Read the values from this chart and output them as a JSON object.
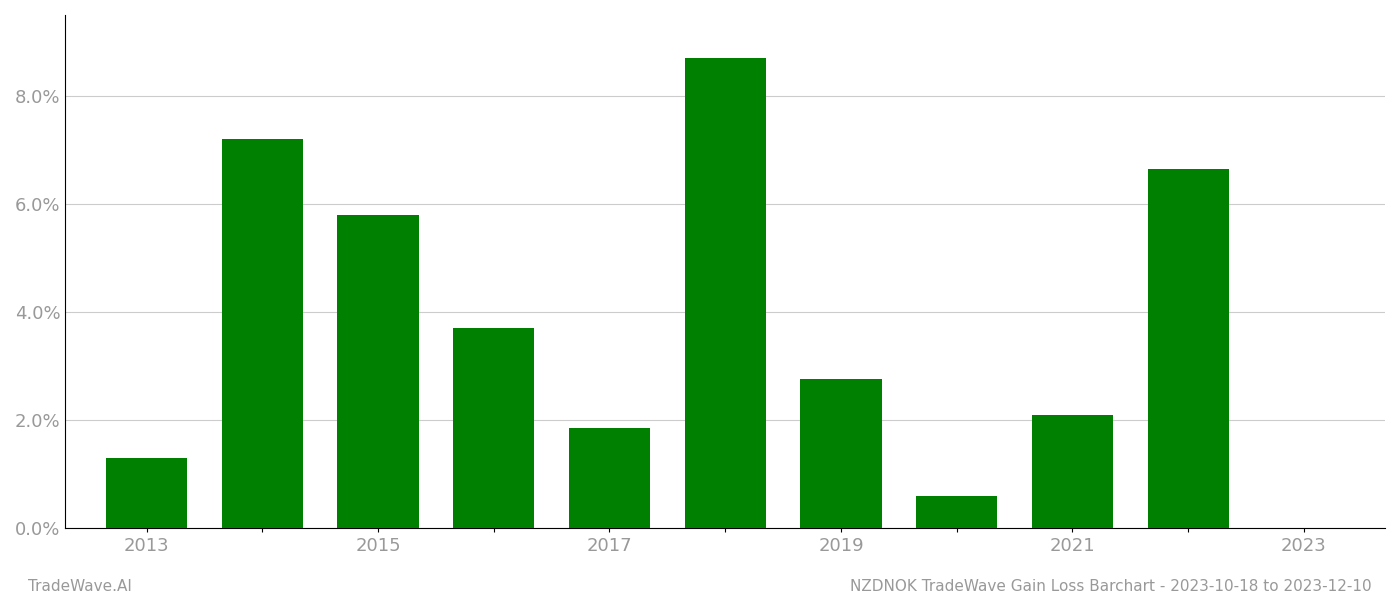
{
  "years": [
    2013,
    2014,
    2015,
    2016,
    2017,
    2018,
    2019,
    2020,
    2021,
    2022
  ],
  "values": [
    0.013,
    0.072,
    0.058,
    0.037,
    0.0185,
    0.087,
    0.0275,
    0.006,
    0.021,
    0.0665
  ],
  "bar_color": "#008000",
  "xtick_label_years": [
    2013,
    2015,
    2017,
    2019,
    2021,
    2023
  ],
  "xtick_all_years": [
    2013,
    2014,
    2015,
    2016,
    2017,
    2018,
    2019,
    2020,
    2021,
    2022,
    2023
  ],
  "ytick_values": [
    0.0,
    0.02,
    0.04,
    0.06,
    0.08
  ],
  "ylim": [
    0,
    0.095
  ],
  "xlim": [
    2012.3,
    2023.7
  ],
  "footer_left": "TradeWave.AI",
  "footer_right": "NZDNOK TradeWave Gain Loss Barchart - 2023-10-18 to 2023-12-10",
  "footer_fontsize": 11,
  "bar_width": 0.7,
  "background_color": "#ffffff",
  "grid_color": "#cccccc",
  "tick_label_color": "#999999",
  "tick_label_fontsize": 13,
  "spine_color": "#000000"
}
